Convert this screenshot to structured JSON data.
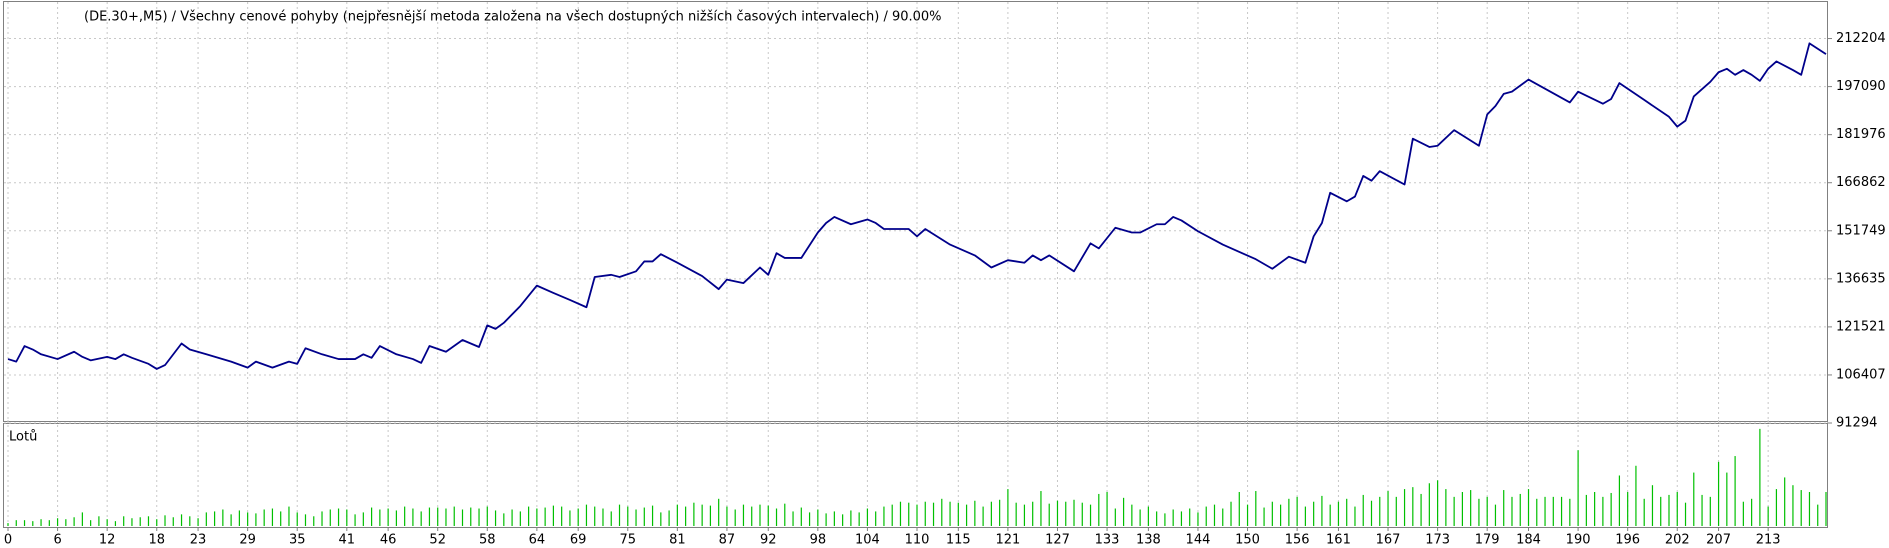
{
  "chart_data": [
    {
      "type": "line",
      "title": "(DE.30+,M5) / Všechny cenové pohyby (nejpřesnější metoda založena na všech dostupných nižších časových intervalech) / 90.00%",
      "x": [
        0,
        1,
        2,
        3,
        4,
        6,
        8,
        9,
        10,
        12,
        13,
        14,
        15,
        17,
        18,
        19,
        21,
        22,
        24,
        27,
        29,
        30,
        32,
        34,
        35,
        36,
        38,
        40,
        42,
        43,
        44,
        45,
        47,
        49,
        50,
        51,
        53,
        55,
        57,
        58,
        59,
        60,
        62,
        64,
        66,
        68,
        70,
        71,
        73,
        74,
        76,
        77,
        78,
        79,
        81,
        84,
        86,
        87,
        89,
        91,
        92,
        93,
        94,
        96,
        98,
        99,
        100,
        102,
        104,
        105,
        106,
        109,
        110,
        111,
        114,
        117,
        119,
        121,
        123,
        124,
        125,
        126,
        129,
        131,
        132,
        134,
        136,
        137,
        139,
        140,
        141,
        142,
        144,
        147,
        151,
        153,
        155,
        157,
        158,
        159,
        160,
        162,
        163,
        164,
        165,
        166,
        169,
        170,
        172,
        173,
        175,
        178,
        179,
        180,
        181,
        182,
        184,
        189,
        190,
        193,
        194,
        195,
        198,
        201,
        202,
        203,
        204,
        206,
        207,
        208,
        209,
        210,
        211,
        212,
        213,
        214,
        216,
        217,
        218,
        220
      ],
      "series": [
        {
          "color": "#00008b",
          "values": [
            111400,
            110600,
            115500,
            114400,
            112900,
            111400,
            113700,
            112100,
            111000,
            112100,
            111400,
            112900,
            111800,
            109900,
            108300,
            109500,
            116300,
            114400,
            112900,
            110600,
            108700,
            110600,
            108700,
            110600,
            109900,
            114800,
            112900,
            111400,
            111400,
            112900,
            111800,
            115500,
            112900,
            111400,
            110200,
            115500,
            113700,
            117400,
            115200,
            122000,
            120900,
            122800,
            128100,
            134500,
            132200,
            130000,
            127700,
            137200,
            137900,
            137200,
            139000,
            142100,
            142100,
            144400,
            141700,
            137500,
            133400,
            136400,
            135300,
            140200,
            137900,
            144700,
            143200,
            143200,
            151200,
            154200,
            156100,
            153800,
            155300,
            154200,
            152300,
            152300,
            150000,
            152300,
            147400,
            144000,
            140200,
            142500,
            141700,
            144000,
            142500,
            144000,
            139000,
            147800,
            146200,
            152700,
            151200,
            151200,
            153800,
            153800,
            156100,
            155000,
            151600,
            147400,
            142800,
            139800,
            143600,
            141700,
            150000,
            154200,
            163700,
            161000,
            162500,
            169000,
            167500,
            170500,
            166300,
            180700,
            178100,
            178500,
            183400,
            178500,
            188300,
            191000,
            194800,
            195500,
            199300,
            192100,
            195500,
            191700,
            193200,
            198200,
            192900,
            187600,
            184500,
            186400,
            194000,
            198600,
            201600,
            202700,
            200800,
            202300,
            200800,
            198900,
            202700,
            205000,
            202300,
            200800,
            210700,
            207300
          ]
        }
      ],
      "xlim": [
        0,
        220
      ],
      "ylim": [
        91294,
        222440
      ],
      "yticks": [
        212204,
        197090,
        181976,
        166862,
        151749,
        136635,
        121521,
        106407,
        91294
      ],
      "grid": true
    },
    {
      "type": "bar",
      "title": "Lotů",
      "x": [
        0,
        1,
        2,
        3,
        4,
        5,
        6,
        7,
        8,
        9,
        10,
        11,
        12,
        13,
        14,
        15,
        16,
        17,
        18,
        19,
        20,
        21,
        22,
        23,
        24,
        25,
        26,
        27,
        28,
        29,
        30,
        31,
        32,
        33,
        34,
        35,
        36,
        37,
        38,
        39,
        40,
        41,
        42,
        43,
        44,
        45,
        46,
        47,
        48,
        49,
        50,
        51,
        52,
        53,
        54,
        55,
        56,
        57,
        58,
        59,
        60,
        61,
        62,
        63,
        64,
        65,
        66,
        67,
        68,
        69,
        70,
        71,
        72,
        73,
        74,
        75,
        76,
        77,
        78,
        79,
        80,
        81,
        82,
        83,
        84,
        85,
        86,
        87,
        88,
        89,
        90,
        91,
        92,
        93,
        94,
        95,
        96,
        97,
        98,
        99,
        100,
        101,
        102,
        103,
        104,
        105,
        106,
        107,
        108,
        109,
        110,
        111,
        112,
        113,
        114,
        115,
        116,
        117,
        118,
        119,
        120,
        121,
        122,
        123,
        124,
        125,
        126,
        127,
        128,
        129,
        130,
        131,
        132,
        133,
        134,
        135,
        136,
        137,
        138,
        139,
        140,
        141,
        142,
        143,
        144,
        145,
        146,
        147,
        148,
        149,
        150,
        151,
        152,
        153,
        154,
        155,
        156,
        157,
        158,
        159,
        160,
        161,
        162,
        163,
        164,
        165,
        166,
        167,
        168,
        169,
        170,
        171,
        172,
        173,
        174,
        175,
        176,
        177,
        178,
        179,
        180,
        181,
        182,
        183,
        184,
        185,
        186,
        187,
        188,
        189,
        190,
        191,
        192,
        193,
        194,
        195,
        196,
        197,
        198,
        199,
        200,
        201,
        202,
        203,
        204,
        205,
        206,
        207,
        208,
        209,
        210,
        211,
        212,
        213,
        214,
        215,
        216,
        217,
        218,
        219,
        220
      ],
      "values": [
        0.03,
        0.06,
        0.06,
        0.05,
        0.07,
        0.06,
        0.08,
        0.07,
        0.09,
        0.14,
        0.06,
        0.1,
        0.07,
        0.05,
        0.1,
        0.08,
        0.09,
        0.1,
        0.07,
        0.11,
        0.09,
        0.12,
        0.1,
        0.08,
        0.14,
        0.15,
        0.17,
        0.12,
        0.16,
        0.14,
        0.13,
        0.17,
        0.18,
        0.15,
        0.2,
        0.14,
        0.12,
        0.1,
        0.15,
        0.17,
        0.18,
        0.17,
        0.12,
        0.14,
        0.19,
        0.17,
        0.18,
        0.16,
        0.2,
        0.18,
        0.15,
        0.19,
        0.19,
        0.18,
        0.2,
        0.17,
        0.19,
        0.18,
        0.2,
        0.16,
        0.13,
        0.17,
        0.15,
        0.2,
        0.18,
        0.19,
        0.21,
        0.2,
        0.16,
        0.18,
        0.22,
        0.2,
        0.18,
        0.15,
        0.22,
        0.2,
        0.17,
        0.19,
        0.21,
        0.14,
        0.16,
        0.22,
        0.2,
        0.24,
        0.22,
        0.21,
        0.28,
        0.2,
        0.17,
        0.22,
        0.2,
        0.22,
        0.21,
        0.18,
        0.23,
        0.15,
        0.19,
        0.14,
        0.17,
        0.13,
        0.15,
        0.12,
        0.16,
        0.14,
        0.18,
        0.15,
        0.2,
        0.22,
        0.25,
        0.24,
        0.22,
        0.25,
        0.24,
        0.28,
        0.25,
        0.24,
        0.22,
        0.26,
        0.2,
        0.25,
        0.27,
        0.38,
        0.24,
        0.22,
        0.25,
        0.36,
        0.23,
        0.26,
        0.25,
        0.27,
        0.24,
        0.22,
        0.33,
        0.35,
        0.18,
        0.29,
        0.22,
        0.17,
        0.2,
        0.15,
        0.13,
        0.17,
        0.15,
        0.18,
        0.14,
        0.2,
        0.22,
        0.18,
        0.25,
        0.35,
        0.22,
        0.36,
        0.19,
        0.25,
        0.22,
        0.28,
        0.3,
        0.2,
        0.25,
        0.31,
        0.22,
        0.25,
        0.28,
        0.2,
        0.32,
        0.26,
        0.3,
        0.36,
        0.3,
        0.38,
        0.4,
        0.33,
        0.44,
        0.47,
        0.38,
        0.3,
        0.35,
        0.37,
        0.28,
        0.3,
        0.22,
        0.37,
        0.3,
        0.33,
        0.38,
        0.28,
        0.3,
        0.3,
        0.3,
        0.28,
        0.78,
        0.32,
        0.35,
        0.3,
        0.34,
        0.52,
        0.35,
        0.62,
        0.28,
        0.42,
        0.3,
        0.32,
        0.35,
        0.24,
        0.55,
        0.32,
        0.3,
        0.66,
        0.55,
        0.72,
        0.25,
        0.28,
        1.0,
        0.2,
        0.38,
        0.5,
        0.42,
        0.37,
        0.35,
        0.22,
        0.35
      ],
      "color": "#00c000",
      "xlim": [
        0,
        220
      ],
      "ylim": [
        0,
        1.05
      ],
      "xticks": [
        0,
        6,
        12,
        18,
        23,
        29,
        35,
        41,
        46,
        52,
        58,
        64,
        69,
        75,
        81,
        87,
        92,
        98,
        104,
        110,
        115,
        121,
        127,
        133,
        138,
        144,
        150,
        156,
        161,
        167,
        173,
        179,
        184,
        190,
        196,
        202,
        207,
        213
      ],
      "grid": true
    }
  ]
}
